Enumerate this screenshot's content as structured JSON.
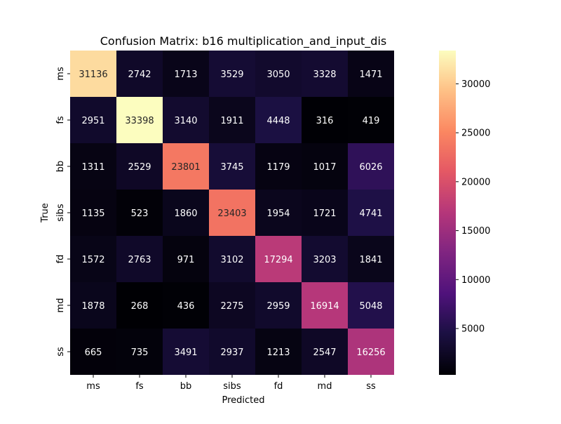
{
  "chart_data": {
    "type": "heatmap",
    "title": "Confusion Matrix: b16 multiplication_and_input_dis",
    "xlabel": "Predicted",
    "ylabel": "True",
    "x_categories": [
      "ms",
      "fs",
      "bb",
      "sibs",
      "fd",
      "md",
      "ss"
    ],
    "y_categories": [
      "ms",
      "fs",
      "bb",
      "sibs",
      "fd",
      "md",
      "ss"
    ],
    "values": [
      [
        31136,
        2742,
        1713,
        3529,
        3050,
        3328,
        1471
      ],
      [
        2951,
        33398,
        3140,
        1911,
        4448,
        316,
        419
      ],
      [
        1311,
        2529,
        23801,
        3745,
        1179,
        1017,
        6026
      ],
      [
        1135,
        523,
        1860,
        23403,
        1954,
        1721,
        4741
      ],
      [
        1572,
        2763,
        971,
        3102,
        17294,
        3203,
        1841
      ],
      [
        1878,
        268,
        436,
        2275,
        2959,
        16914,
        5048
      ],
      [
        665,
        735,
        3491,
        2937,
        1213,
        2547,
        16256
      ]
    ],
    "colormap": "magma",
    "colorbar": {
      "ticks": [
        5000,
        10000,
        15000,
        20000,
        25000,
        30000
      ],
      "range": [
        268,
        33398
      ]
    }
  }
}
